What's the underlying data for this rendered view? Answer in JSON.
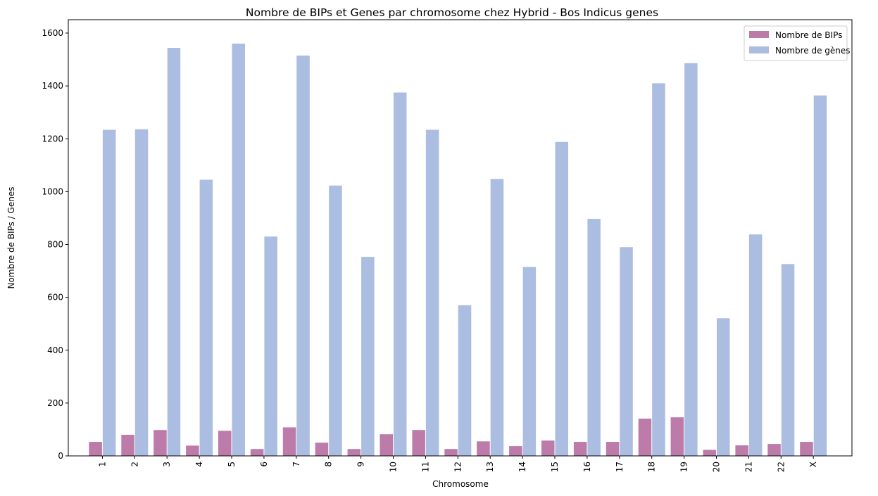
{
  "chart_data": {
    "type": "bar",
    "title": "Nombre de BIPs et Genes par chromosome chez Hybrid - Bos Indicus genes",
    "xlabel": "Chromosome",
    "ylabel": "Nombre de BIPs / Genes",
    "categories": [
      "1",
      "2",
      "3",
      "4",
      "5",
      "6",
      "7",
      "8",
      "9",
      "10",
      "11",
      "12",
      "13",
      "14",
      "15",
      "16",
      "17",
      "18",
      "19",
      "20",
      "21",
      "22",
      "X"
    ],
    "series": [
      {
        "name": "Nombre de BIPs",
        "color": "#bc7ba8",
        "values": [
          53,
          80,
          98,
          39,
          95,
          26,
          108,
          50,
          26,
          82,
          98,
          26,
          55,
          37,
          58,
          53,
          53,
          141,
          146,
          23,
          40,
          45,
          53
        ]
      },
      {
        "name": "Nombre de gènes",
        "color": "#abbde0",
        "values": [
          1234,
          1236,
          1544,
          1045,
          1560,
          830,
          1515,
          1023,
          753,
          1375,
          1234,
          570,
          1048,
          715,
          1188,
          897,
          790,
          1410,
          1486,
          521,
          838,
          726,
          1364
        ]
      }
    ],
    "yticks": [
      0,
      200,
      400,
      600,
      800,
      1000,
      1200,
      1400,
      1600
    ],
    "ylim": [
      0,
      1600
    ],
    "legend": "top-right",
    "grid": false
  }
}
